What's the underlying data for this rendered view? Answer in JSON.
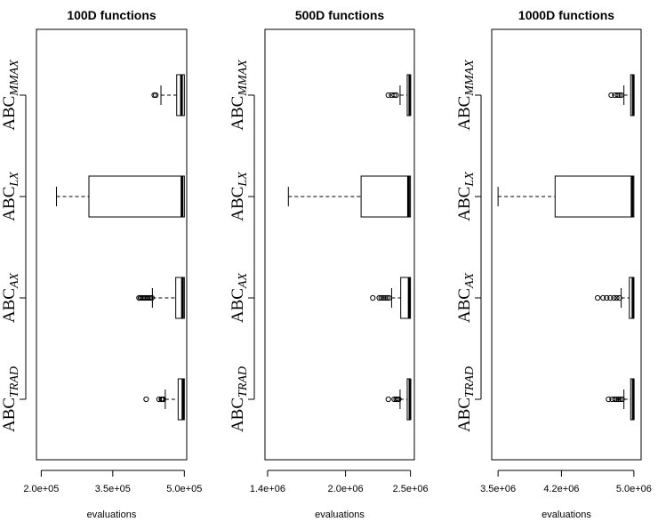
{
  "chart_data": [
    {
      "type": "boxplot",
      "orientation": "horizontal",
      "title": "100D functions",
      "xlabel": "evaluations",
      "xlim": [
        190000,
        505000
      ],
      "xticks": [
        200000,
        350000,
        500000
      ],
      "xtick_labels": [
        "2.0e+05",
        "3.5e+05",
        "5.0e+05"
      ],
      "categories": [
        {
          "base": "ABC",
          "sub": "TRAD"
        },
        {
          "base": "ABC",
          "sub": "AX"
        },
        {
          "base": "ABC",
          "sub": "LX"
        },
        {
          "base": "ABC",
          "sub": "MMAX"
        }
      ],
      "boxes": [
        {
          "whisker_low": 460000,
          "q1": 487000,
          "median": 497000,
          "q3": 500000,
          "whisker_high": 500000,
          "outliers": [
            420000,
            447000,
            452000,
            454000,
            456000
          ]
        },
        {
          "whisker_low": 433000,
          "q1": 482000,
          "median": 496000,
          "q3": 500000,
          "whisker_high": 500000,
          "outliers": [
            405000,
            408000,
            411000,
            414000,
            417000,
            420000,
            423000,
            426000,
            429000,
            432000
          ]
        },
        {
          "whisker_low": 232000,
          "q1": 300000,
          "median": 495000,
          "q3": 500000,
          "whisker_high": 500000,
          "outliers": []
        },
        {
          "whisker_low": 451000,
          "q1": 484000,
          "median": 494000,
          "q3": 500000,
          "whisker_high": 500000,
          "outliers": [
            437000,
            440000
          ]
        }
      ]
    },
    {
      "type": "boxplot",
      "orientation": "horizontal",
      "title": "500D functions",
      "xlabel": "evaluations",
      "xlim": [
        1380000,
        2530000
      ],
      "xticks": [
        1400000,
        2000000,
        2500000
      ],
      "xtick_labels": [
        "1.4e+06",
        "2.0e+06",
        "2.5e+06"
      ],
      "categories": [
        {
          "base": "ABC",
          "sub": "TRAD"
        },
        {
          "base": "ABC",
          "sub": "AX"
        },
        {
          "base": "ABC",
          "sub": "LX"
        },
        {
          "base": "ABC",
          "sub": "MMAX"
        }
      ],
      "boxes": [
        {
          "whisker_low": 2420000,
          "q1": 2475000,
          "median": 2496000,
          "q3": 2500000,
          "whisker_high": 2500000,
          "outliers": [
            2330000,
            2375000,
            2390000,
            2400000,
            2410000
          ]
        },
        {
          "whisker_low": 2355000,
          "q1": 2425000,
          "median": 2490000,
          "q3": 2500000,
          "whisker_high": 2500000,
          "outliers": [
            2210000,
            2260000,
            2275000,
            2290000,
            2305000,
            2320000,
            2335000
          ]
        },
        {
          "whisker_low": 1560000,
          "q1": 2120000,
          "median": 2485000,
          "q3": 2500000,
          "whisker_high": 2500000,
          "outliers": []
        },
        {
          "whisker_low": 2420000,
          "q1": 2475000,
          "median": 2495000,
          "q3": 2500000,
          "whisker_high": 2500000,
          "outliers": [
            2330000,
            2355000,
            2375000,
            2390000
          ]
        }
      ]
    },
    {
      "type": "boxplot",
      "orientation": "horizontal",
      "title": "1000D functions",
      "xlabel": "evaluations",
      "xlim": [
        3430000,
        5080000
      ],
      "xticks": [
        3500000,
        4200000,
        5000000
      ],
      "xtick_labels": [
        "3.5e+06",
        "4.2e+06",
        "5.0e+06"
      ],
      "categories": [
        {
          "base": "ABC",
          "sub": "TRAD"
        },
        {
          "base": "ABC",
          "sub": "AX"
        },
        {
          "base": "ABC",
          "sub": "LX"
        },
        {
          "base": "ABC",
          "sub": "MMAX"
        }
      ],
      "boxes": [
        {
          "whisker_low": 4890000,
          "q1": 4965000,
          "median": 4993000,
          "q3": 5000000,
          "whisker_high": 5000000,
          "outliers": [
            4720000,
            4760000,
            4790000,
            4810000,
            4830000,
            4850000,
            4870000
          ]
        },
        {
          "whisker_low": 4860000,
          "q1": 4950000,
          "median": 4990000,
          "q3": 5000000,
          "whisker_high": 5000000,
          "outliers": [
            4600000,
            4660000,
            4700000,
            4740000,
            4780000,
            4810000,
            4840000
          ]
        },
        {
          "whisker_low": 3500000,
          "q1": 4130000,
          "median": 4980000,
          "q3": 5000000,
          "whisker_high": 5000000,
          "outliers": []
        },
        {
          "whisker_low": 4890000,
          "q1": 4965000,
          "median": 4993000,
          "q3": 5000000,
          "whisker_high": 5000000,
          "outliers": [
            4750000,
            4790000,
            4820000,
            4840000,
            4860000
          ]
        }
      ]
    }
  ]
}
